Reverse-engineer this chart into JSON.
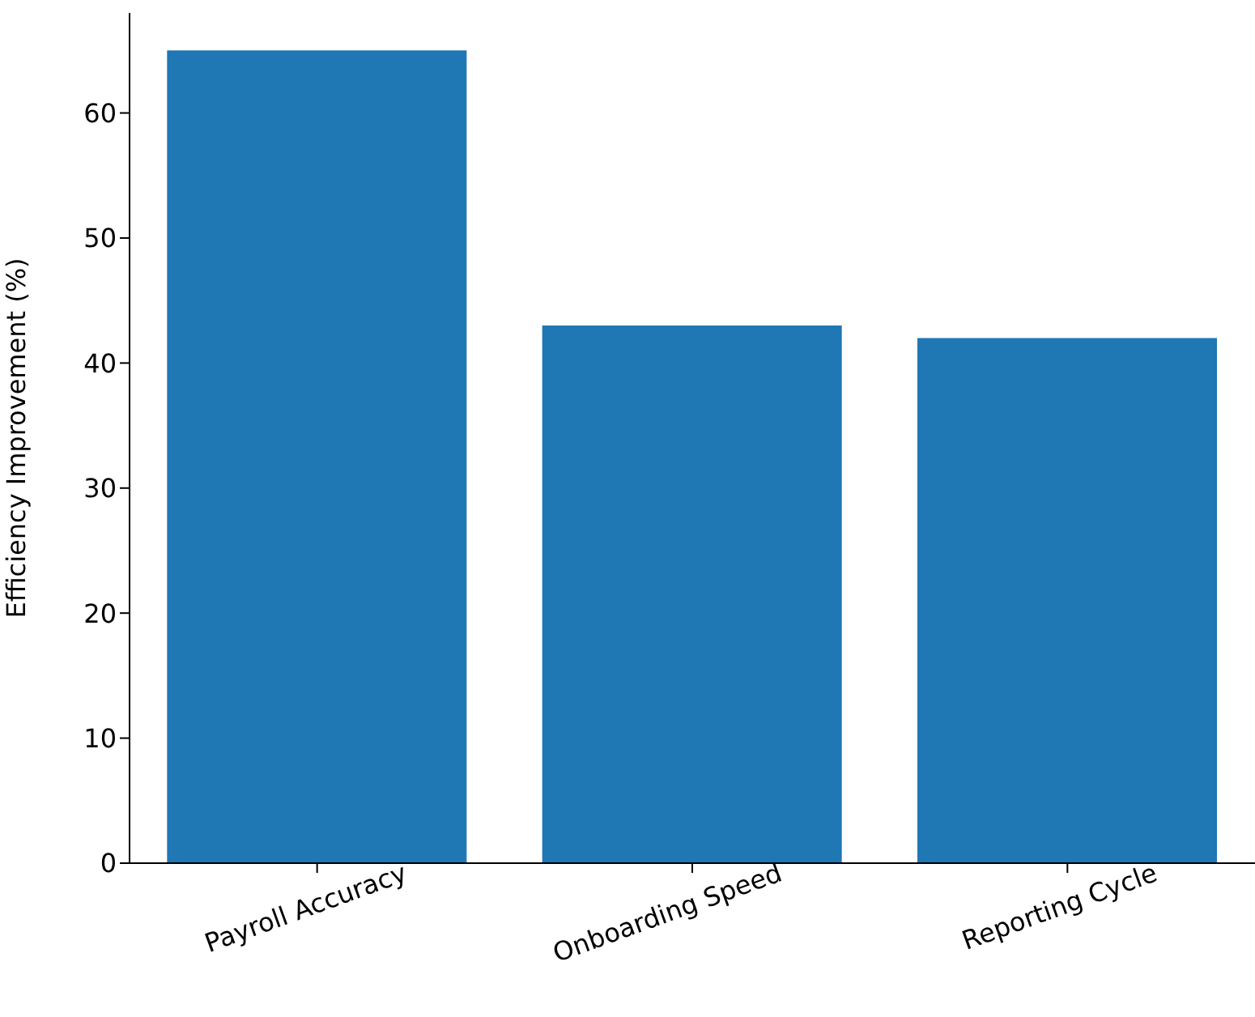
{
  "chart_data": {
    "type": "bar",
    "categories": [
      "Payroll Accuracy",
      "Onboarding Speed",
      "Reporting Cycle"
    ],
    "values": [
      65,
      43,
      42
    ],
    "color": "#1f77b4",
    "ylabel": "Efficiency Improvement (%)",
    "ylim": [
      0,
      68
    ],
    "yticks": [
      0,
      10,
      20,
      30,
      40,
      50,
      60
    ],
    "grid": false,
    "legend": false
  }
}
